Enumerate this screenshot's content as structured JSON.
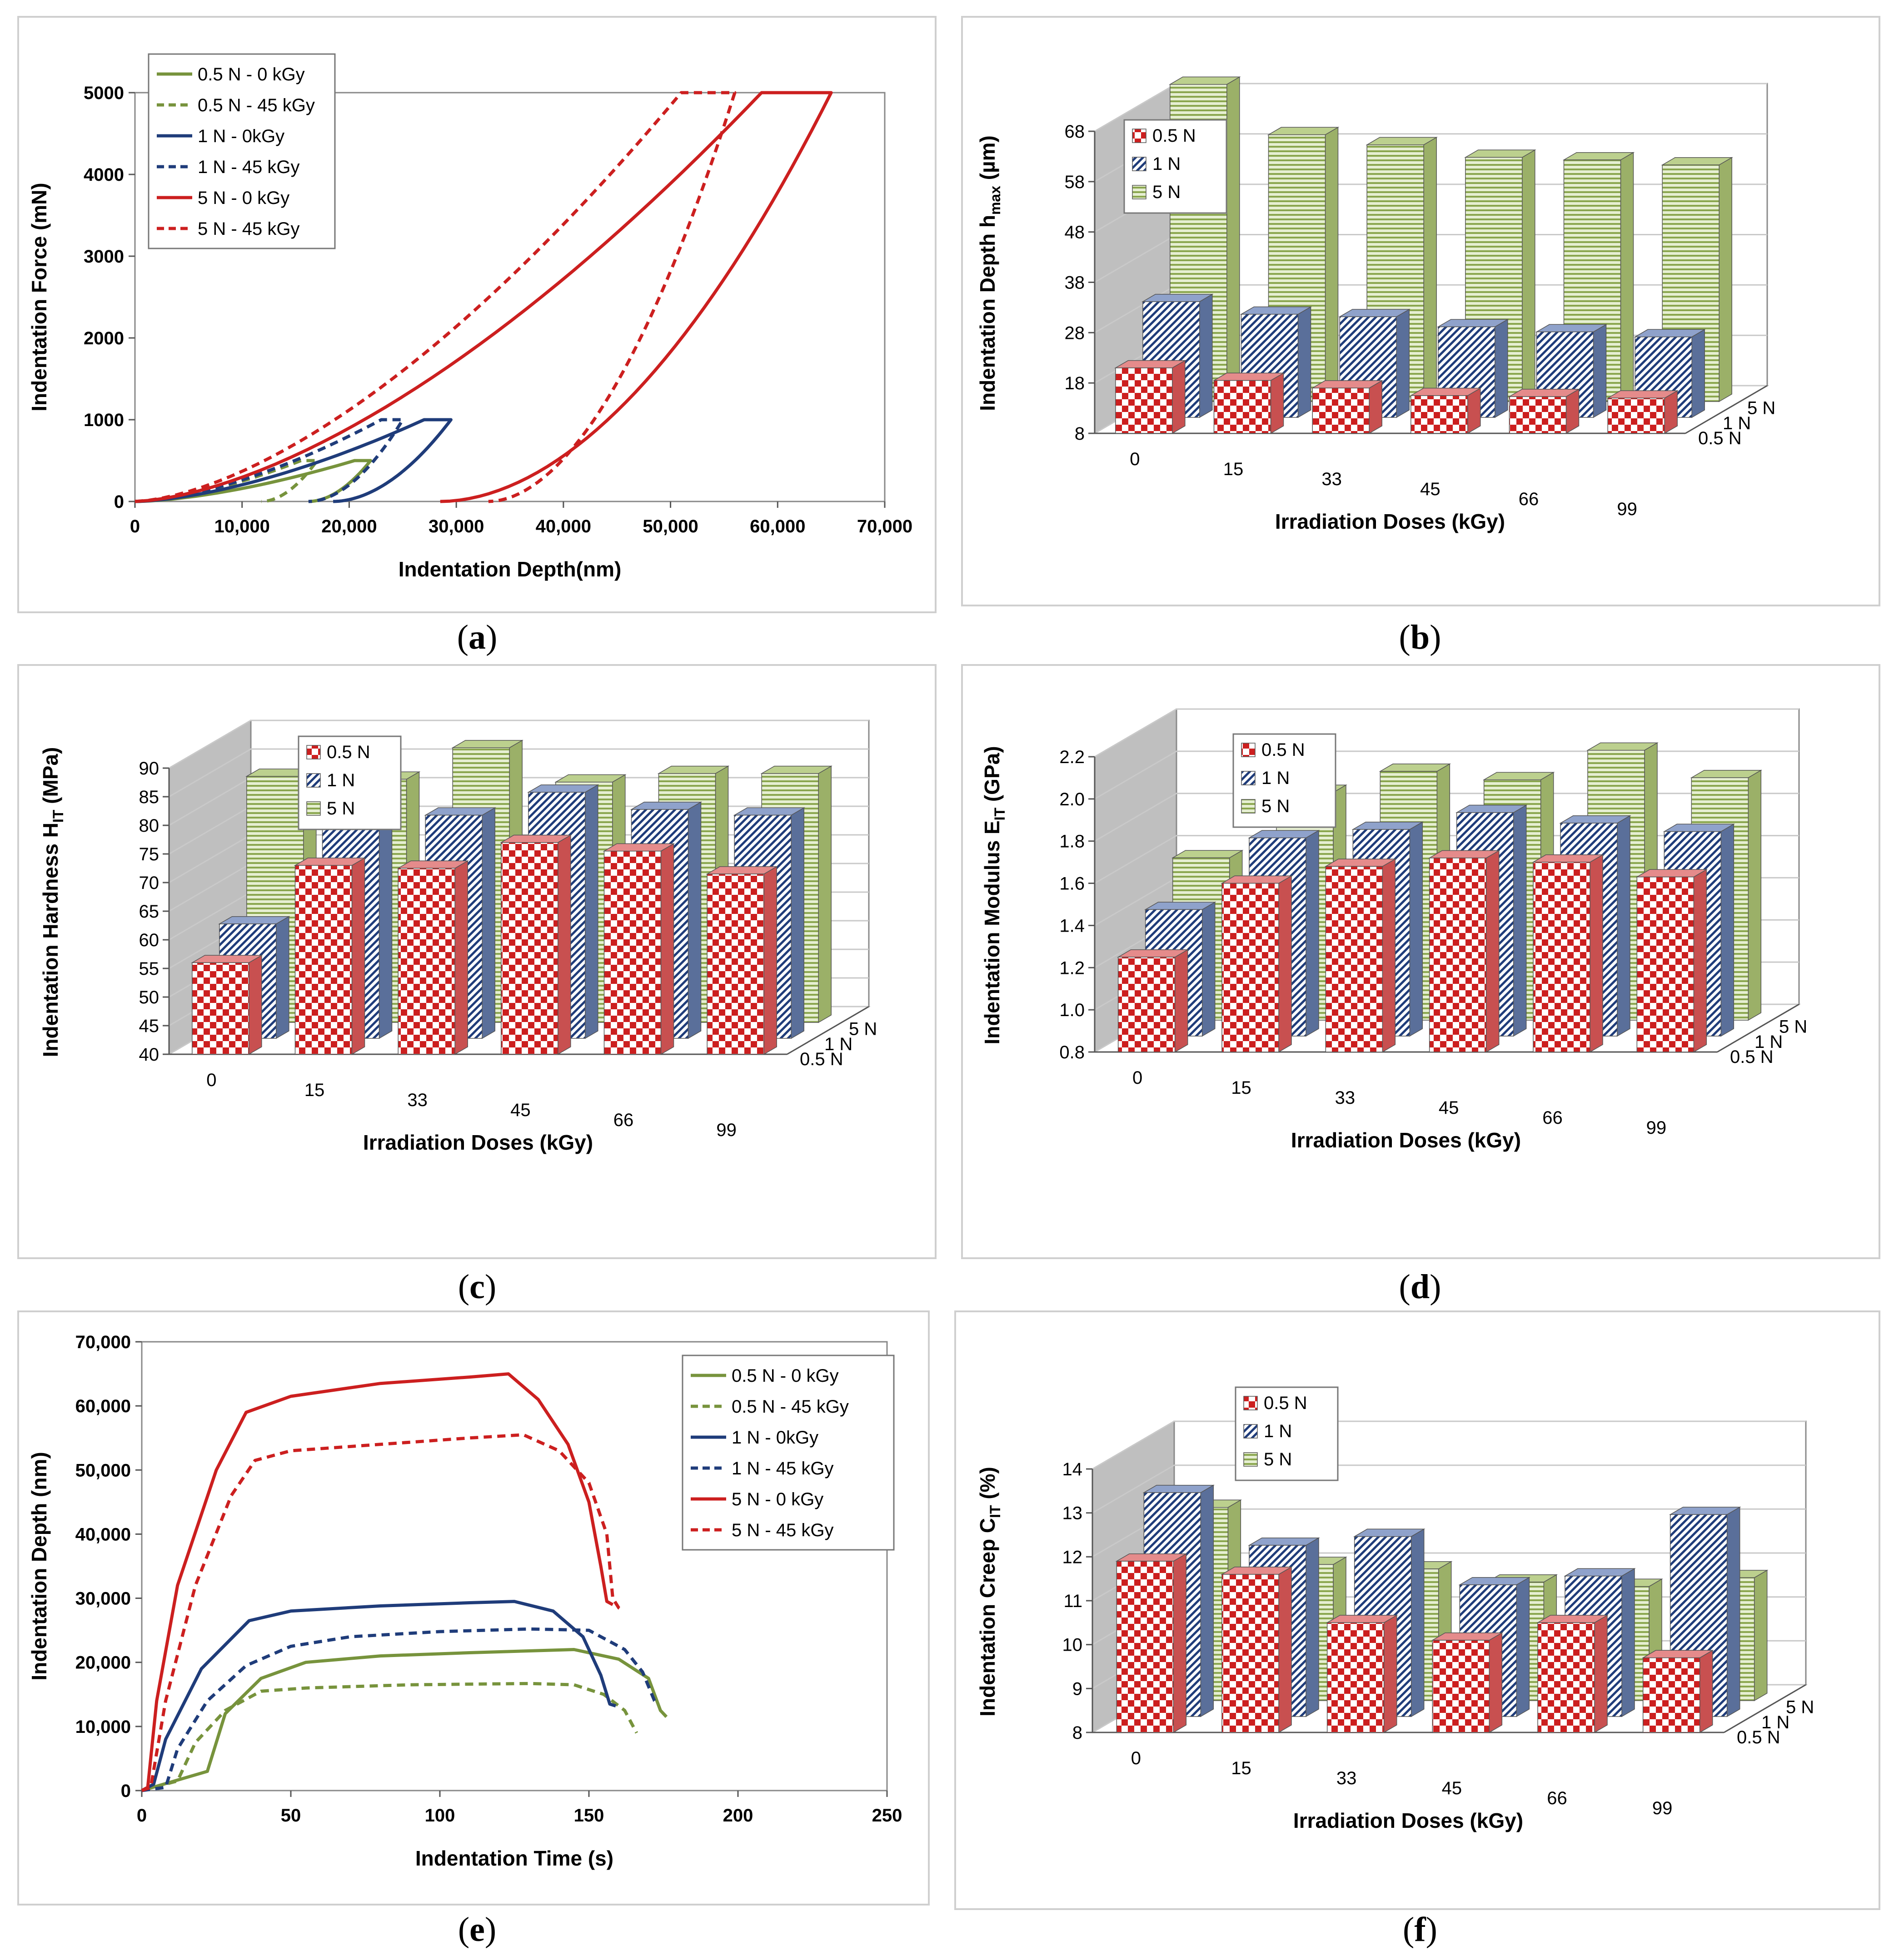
{
  "colors": {
    "green": "#77933c",
    "blue": "#1f3c7a",
    "red": "#cc1f1f",
    "wall": "#bfbfbf",
    "green_fill": "#c3d69b",
    "blue_fill": "#c6d2ea",
    "red_fill": "#f3b7b7",
    "grid": "#c9c9c9"
  },
  "captions": {
    "a": "a",
    "b": "b",
    "c": "c",
    "d": "d",
    "e": "e",
    "f": "f"
  },
  "chart_data": [
    {
      "id": "a",
      "type": "line",
      "xlabel": "Indentation Depth(nm)",
      "ylabel": "Indentation Force (mN)",
      "xlim": [
        0,
        70000
      ],
      "ylim": [
        0,
        5000
      ],
      "x_ticks": [
        "0",
        "10,000",
        "20,000",
        "30,000",
        "40,000",
        "50,000",
        "60,000",
        "70,000"
      ],
      "y_ticks": [
        "0",
        "1000",
        "2000",
        "3000",
        "4000",
        "5000"
      ],
      "legend": [
        {
          "label": "0.5 N - 0 kGy",
          "color": "green",
          "dash": false
        },
        {
          "label": "0.5 N - 45 kGy",
          "color": "green",
          "dash": true
        },
        {
          "label": "1 N - 0kGy",
          "color": "blue",
          "dash": false
        },
        {
          "label": "1 N - 45 kGy",
          "color": "blue",
          "dash": true
        },
        {
          "label": "5 N - 0 kGy",
          "color": "red",
          "dash": false
        },
        {
          "label": "5 N - 45 kGy",
          "color": "red",
          "dash": true
        }
      ],
      "series": [
        {
          "name": "0.5 N - 0 kGy",
          "hmax": 22000,
          "hhold": 20500,
          "hp": 16200,
          "fmax": 500
        },
        {
          "name": "0.5 N - 45 kGy",
          "hmax": 17000,
          "hhold": 15500,
          "hp": 11800,
          "fmax": 500
        },
        {
          "name": "1 N - 0kGy",
          "hmax": 29500,
          "hhold": 27000,
          "hp": 18500,
          "fmax": 1000
        },
        {
          "name": "1 N - 45 kGy",
          "hmax": 25000,
          "hhold": 23000,
          "hp": 16200,
          "fmax": 1000
        },
        {
          "name": "5 N - 0 kGy",
          "hmax": 65000,
          "hhold": 58500,
          "hp": 28500,
          "fmax": 5000
        },
        {
          "name": "5 N - 45 kGy",
          "hmax": 56000,
          "hhold": 51000,
          "hp": 33000,
          "fmax": 5000
        }
      ]
    },
    {
      "id": "b",
      "type": "bar3d",
      "ylabel": "Indentation Depth h",
      "ylabel_sub": "max",
      "ylabel_tail": " (µm)",
      "xlabel": "Irradiation Doses (kGy)",
      "categories": [
        "0",
        "15",
        "33",
        "45",
        "66",
        "99"
      ],
      "depth_labels": [
        "0.5 N",
        "1 N",
        "5 N"
      ],
      "ylim": [
        8,
        68
      ],
      "y_ticks": [
        "8",
        "18",
        "28",
        "38",
        "48",
        "58",
        "68"
      ],
      "series": [
        {
          "name": "0.5 N",
          "values": [
            21,
            18.5,
            17,
            15.5,
            15.3,
            15
          ]
        },
        {
          "name": "1 N",
          "values": [
            31,
            28.5,
            28,
            26,
            25,
            24
          ]
        },
        {
          "name": "5 N",
          "values": [
            71,
            61,
            59,
            56.5,
            56,
            55
          ]
        }
      ]
    },
    {
      "id": "c",
      "type": "bar3d",
      "ylabel": "Indentation Hardness H",
      "ylabel_sub": "IT",
      "ylabel_tail": " (MPa)",
      "xlabel": "Irradiation Doses (kGy)",
      "categories": [
        "0",
        "15",
        "33",
        "45",
        "66",
        "99"
      ],
      "depth_labels": [
        "0.5 N",
        "1 N",
        "5 N"
      ],
      "ylim": [
        40,
        90
      ],
      "y_ticks": [
        "40",
        "45",
        "50",
        "55",
        "60",
        "65",
        "70",
        "75",
        "80",
        "85",
        "90"
      ],
      "series": [
        {
          "name": "0.5 N",
          "values": [
            56,
            73,
            72.5,
            77,
            75.5,
            71.5
          ]
        },
        {
          "name": "1 N",
          "values": [
            60,
            86,
            79,
            83,
            80,
            79
          ]
        },
        {
          "name": "5 N",
          "values": [
            83,
            82.5,
            88,
            82,
            83.5,
            83.5
          ]
        }
      ]
    },
    {
      "id": "d",
      "type": "bar3d",
      "ylabel": "Indentation Modulus E",
      "ylabel_sub": "IT",
      "ylabel_tail": " (GPa)",
      "xlabel": "Irradiation Doses (kGy)",
      "categories": [
        "0",
        "15",
        "33",
        "45",
        "66",
        "99"
      ],
      "depth_labels": [
        "0.5 N",
        "1 N",
        "5 N"
      ],
      "ylim": [
        0.8,
        2.2
      ],
      "y_ticks": [
        "0.8",
        "1.0",
        "1.2",
        "1.4",
        "1.6",
        "1.8",
        "2.0",
        "2.2"
      ],
      "series": [
        {
          "name": "0.5 N",
          "values": [
            1.25,
            1.6,
            1.68,
            1.72,
            1.7,
            1.63
          ]
        },
        {
          "name": "1 N",
          "values": [
            1.4,
            1.74,
            1.78,
            1.86,
            1.81,
            1.77
          ]
        },
        {
          "name": "5 N",
          "values": [
            1.57,
            1.88,
            1.98,
            1.94,
            2.08,
            1.95
          ]
        }
      ]
    },
    {
      "id": "e",
      "type": "line",
      "xlabel": "Indentation Time (s)",
      "ylabel": "Indentation Depth (nm)",
      "xlim": [
        0,
        250
      ],
      "ylim": [
        0,
        70000
      ],
      "x_ticks": [
        "0",
        "50",
        "100",
        "150",
        "200",
        "250"
      ],
      "y_ticks": [
        "0",
        "10,000",
        "20,000",
        "30,000",
        "40,000",
        "50,000",
        "60,000",
        "70,000"
      ],
      "legend": [
        {
          "label": "0.5 N - 0 kGy",
          "color": "green",
          "dash": false
        },
        {
          "label": "0.5 N - 45 kGy",
          "color": "green",
          "dash": true
        },
        {
          "label": "1 N - 0kGy",
          "color": "blue",
          "dash": false
        },
        {
          "label": "1 N - 45 kGy",
          "color": "blue",
          "dash": true
        },
        {
          "label": "5 N - 0 kGy",
          "color": "red",
          "dash": false
        },
        {
          "label": "5 N - 45 kGy",
          "color": "red",
          "dash": true
        }
      ],
      "series": [
        {
          "name": "0.5 N - 0 kGy",
          "points": [
            [
              0,
              0
            ],
            [
              22,
              3000
            ],
            [
              28,
              12000
            ],
            [
              40,
              17500
            ],
            [
              55,
              20000
            ],
            [
              80,
              21000
            ],
            [
              110,
              21500
            ],
            [
              145,
              22000
            ],
            [
              160,
              20500
            ],
            [
              170,
              17500
            ],
            [
              174,
              12500
            ],
            [
              176,
              11500
            ]
          ]
        },
        {
          "name": "0.5 N - 45 kGy",
          "points": [
            [
              0,
              0
            ],
            [
              12,
              1500
            ],
            [
              18,
              7500
            ],
            [
              28,
              12500
            ],
            [
              40,
              15500
            ],
            [
              55,
              16000
            ],
            [
              90,
              16500
            ],
            [
              130,
              16700
            ],
            [
              145,
              16500
            ],
            [
              155,
              15000
            ],
            [
              162,
              12500
            ],
            [
              166,
              9000
            ]
          ]
        },
        {
          "name": "1 N - 0kGy",
          "points": [
            [
              0,
              0
            ],
            [
              4,
              1000
            ],
            [
              8,
              8000
            ],
            [
              20,
              19000
            ],
            [
              36,
              26500
            ],
            [
              50,
              28000
            ],
            [
              80,
              28800
            ],
            [
              110,
              29300
            ],
            [
              125,
              29500
            ],
            [
              138,
              28000
            ],
            [
              148,
              24000
            ],
            [
              154,
              18000
            ],
            [
              157,
              13500
            ],
            [
              159,
              13200
            ]
          ]
        },
        {
          "name": "1 N - 45 kGy",
          "points": [
            [
              0,
              0
            ],
            [
              8,
              500
            ],
            [
              12,
              6500
            ],
            [
              22,
              14000
            ],
            [
              35,
              19500
            ],
            [
              50,
              22500
            ],
            [
              70,
              24000
            ],
            [
              100,
              24800
            ],
            [
              130,
              25200
            ],
            [
              150,
              25000
            ],
            [
              162,
              22000
            ],
            [
              168,
              18500
            ],
            [
              172,
              14000
            ],
            [
              173,
              13500
            ]
          ]
        },
        {
          "name": "5 N - 0 kGy",
          "points": [
            [
              0,
              0
            ],
            [
              2,
              500
            ],
            [
              5,
              14000
            ],
            [
              12,
              32000
            ],
            [
              25,
              50000
            ],
            [
              35,
              59000
            ],
            [
              50,
              61500
            ],
            [
              80,
              63500
            ],
            [
              110,
              64500
            ],
            [
              123,
              65000
            ],
            [
              133,
              61000
            ],
            [
              143,
              54000
            ],
            [
              150,
              45000
            ],
            [
              154,
              35000
            ],
            [
              156,
              29500
            ],
            [
              158,
              29000
            ]
          ]
        },
        {
          "name": "5 N - 45 kGy",
          "points": [
            [
              0,
              0
            ],
            [
              3,
              500
            ],
            [
              8,
              14000
            ],
            [
              18,
              32000
            ],
            [
              30,
              46000
            ],
            [
              38,
              51500
            ],
            [
              50,
              53000
            ],
            [
              80,
              54000
            ],
            [
              110,
              55000
            ],
            [
              128,
              55500
            ],
            [
              140,
              53000
            ],
            [
              150,
              48000
            ],
            [
              156,
              40000
            ],
            [
              158,
              30000
            ],
            [
              160,
              28500
            ],
            [
              161,
              28200
            ]
          ]
        }
      ]
    },
    {
      "id": "f",
      "type": "bar3d",
      "ylabel": "Indentation Creep C",
      "ylabel_sub": "IT",
      "ylabel_tail": " (%)",
      "xlabel": "Irradiation Doses (kGy)",
      "categories": [
        "0",
        "15",
        "33",
        "45",
        "66",
        "99"
      ],
      "depth_labels": [
        "0.5 N",
        "1 N",
        "5 N"
      ],
      "ylim": [
        8,
        14
      ],
      "y_ticks": [
        "8",
        "9",
        "10",
        "11",
        "12",
        "13",
        "14"
      ],
      "series": [
        {
          "name": "0.5 N",
          "values": [
            11.9,
            11.6,
            10.5,
            10.1,
            10.5,
            9.7
          ]
        },
        {
          "name": "1 N",
          "values": [
            13.1,
            11.9,
            12.1,
            11.0,
            11.2,
            12.6
          ]
        },
        {
          "name": "5 N",
          "values": [
            12.4,
            11.1,
            11.0,
            10.7,
            10.6,
            10.8
          ]
        }
      ]
    }
  ]
}
